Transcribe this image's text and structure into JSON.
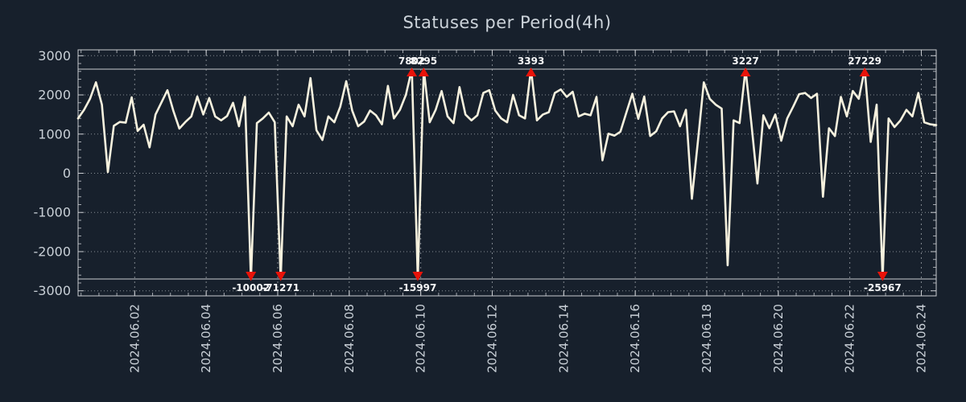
{
  "window": {
    "title": "Statuses per Period(4h)"
  },
  "chart_data": {
    "type": "line",
    "title": "Statuses per Period(4h)",
    "period_hours": 4,
    "ylim": [
      -3000,
      3000
    ],
    "y_ticks": [
      3000,
      2000,
      1000,
      0,
      -1000,
      -2000,
      -3000
    ],
    "y_tick_labels": [
      "3000",
      "2000",
      "1000",
      "0",
      "-1000",
      "-2000",
      "-3000"
    ],
    "x_tick_labels": [
      "2024.06.02",
      "2024.06.04",
      "2024.06.06",
      "2024.06.08",
      "2024.06.10",
      "2024.06.12",
      "2024.06.14",
      "2024.06.16",
      "2024.06.18",
      "2024.06.20",
      "2024.06.22",
      "2024.06.24"
    ],
    "x_first_tick_offset_days": 1.583,
    "x_tick_step_days": 2,
    "clip_top": 2657,
    "clip_bottom": -2698,
    "grid": true,
    "legend_position": "none",
    "values": [
      1400,
      1620,
      1900,
      2320,
      1750,
      30,
      1210,
      1310,
      1290,
      1940,
      1080,
      1240,
      660,
      1500,
      1810,
      2120,
      1590,
      1140,
      1310,
      1450,
      1960,
      1500,
      1920,
      1450,
      1350,
      1460,
      1800,
      1200,
      1950,
      -10002,
      1280,
      1400,
      1550,
      1300,
      -71271,
      1450,
      1200,
      1750,
      1450,
      2430,
      1100,
      850,
      1450,
      1300,
      1700,
      2350,
      1600,
      1200,
      1320,
      1600,
      1480,
      1250,
      2230,
      1400,
      1620,
      2000,
      7802,
      -15997,
      8295,
      1300,
      1620,
      2100,
      1450,
      1280,
      2200,
      1500,
      1350,
      1480,
      2050,
      2120,
      1600,
      1400,
      1300,
      2000,
      1480,
      1400,
      3393,
      1350,
      1500,
      1560,
      2050,
      2140,
      1950,
      2080,
      1450,
      1520,
      1480,
      1950,
      330,
      1010,
      960,
      1060,
      1550,
      2030,
      1390,
      1960,
      950,
      1070,
      1400,
      1560,
      1580,
      1200,
      1620,
      -650,
      800,
      2320,
      1900,
      1750,
      1650,
      -2350,
      1350,
      1280,
      3227,
      1250,
      -260,
      1480,
      1150,
      1500,
      830,
      1400,
      1700,
      2020,
      2050,
      1920,
      2030,
      -600,
      1150,
      950,
      1950,
      1450,
      2100,
      1900,
      27229,
      800,
      1750,
      -25967,
      1400,
      1180,
      1350,
      1620,
      1450,
      2050,
      1300,
      1250,
      1230
    ],
    "annotations": [
      {
        "index": 29,
        "label": "-10002",
        "dir": "down"
      },
      {
        "index": 34,
        "label": "-71271",
        "dir": "down"
      },
      {
        "index": 56,
        "label": "7802",
        "dir": "up"
      },
      {
        "index": 57,
        "label": "-15997",
        "dir": "down"
      },
      {
        "index": 58,
        "label": "8295",
        "dir": "up"
      },
      {
        "index": 76,
        "label": "3393",
        "dir": "up"
      },
      {
        "index": 112,
        "label": "3227",
        "dir": "up"
      },
      {
        "index": 132,
        "label": "27229",
        "dir": "up"
      },
      {
        "index": 135,
        "label": "-25967",
        "dir": "down"
      }
    ],
    "colors": {
      "background": "#17202c",
      "line": "#f6f1de",
      "marker": "#e81309",
      "grid": "#c4c9ce",
      "border": "#c9ccd1",
      "text": "#c9d0d7",
      "annotation_text": "#f4f5f6"
    }
  }
}
